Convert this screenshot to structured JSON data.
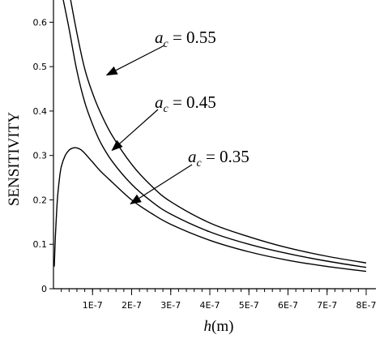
{
  "chart_data": {
    "type": "line",
    "title": "",
    "xlabel": {
      "italic": "h",
      "rest": "(m)"
    },
    "ylabel": "SENSITIVITY",
    "xlim": [
      0,
      8e-07
    ],
    "ylim": [
      0,
      0.65
    ],
    "x_ticks": [
      {
        "value": 1e-07,
        "label": "1E-7"
      },
      {
        "value": 2e-07,
        "label": "2E-7"
      },
      {
        "value": 3e-07,
        "label": "3E-7"
      },
      {
        "value": 4e-07,
        "label": "4E-7"
      },
      {
        "value": 5e-07,
        "label": "5E-7"
      },
      {
        "value": 6e-07,
        "label": "6E-7"
      },
      {
        "value": 7e-07,
        "label": "7E-7"
      },
      {
        "value": 8e-07,
        "label": "8E-7"
      }
    ],
    "y_ticks": [
      {
        "value": 0,
        "label": "0"
      },
      {
        "value": 0.1,
        "label": "0.1"
      },
      {
        "value": 0.2,
        "label": "0.2"
      },
      {
        "value": 0.3,
        "label": "0.3"
      },
      {
        "value": 0.4,
        "label": "0.4"
      },
      {
        "value": 0.5,
        "label": "0.5"
      },
      {
        "value": 0.6,
        "label": "0.6"
      }
    ],
    "grid": false,
    "series": [
      {
        "name": "a_c = 0.55",
        "x": [
          4.4e-08,
          6e-08,
          8e-08,
          1e-07,
          1.2e-07,
          1.5e-07,
          2e-07,
          2.5e-07,
          3e-07,
          4e-07,
          5e-07,
          6e-07,
          7e-07,
          8e-07
        ],
        "y": [
          0.65,
          0.575,
          0.495,
          0.44,
          0.397,
          0.345,
          0.28,
          0.232,
          0.196,
          0.148,
          0.117,
          0.092,
          0.073,
          0.058
        ]
      },
      {
        "name": "a_c = 0.45",
        "x": [
          2.5e-08,
          4e-08,
          6e-08,
          8e-08,
          1e-07,
          1.2e-07,
          1.5e-07,
          2e-07,
          2.5e-07,
          3e-07,
          4e-07,
          5e-07,
          6e-07,
          7e-07,
          8e-07
        ],
        "y": [
          0.65,
          0.585,
          0.49,
          0.42,
          0.37,
          0.33,
          0.287,
          0.235,
          0.197,
          0.168,
          0.128,
          0.1,
          0.079,
          0.062,
          0.048
        ]
      },
      {
        "name": "a_c = 0.35",
        "x": [
          2e-09,
          5e-09,
          1e-08,
          1.5e-08,
          2e-08,
          3e-08,
          4e-08,
          5e-08,
          6e-08,
          7e-08,
          8e-08,
          9e-08,
          1e-07,
          1.2e-07,
          1.5e-07,
          2e-07,
          2.5e-07,
          3e-07,
          4e-07,
          5e-07,
          6e-07,
          7e-07,
          8e-07
        ],
        "y": [
          0.05,
          0.12,
          0.2,
          0.245,
          0.275,
          0.3,
          0.312,
          0.317,
          0.317,
          0.313,
          0.305,
          0.295,
          0.285,
          0.265,
          0.24,
          0.2,
          0.17,
          0.145,
          0.109,
          0.083,
          0.064,
          0.05,
          0.039
        ]
      }
    ],
    "annotations": [
      {
        "var": "a",
        "sub": "c",
        "text": " = 0.55",
        "target": [
          1.34e-07,
          0.48
        ]
      },
      {
        "var": "a",
        "sub": "c",
        "text": " = 0.45",
        "target": [
          1.48e-07,
          0.31
        ]
      },
      {
        "var": "a",
        "sub": "c",
        "text": " = 0.35",
        "target": [
          1.95e-07,
          0.19
        ]
      }
    ]
  }
}
